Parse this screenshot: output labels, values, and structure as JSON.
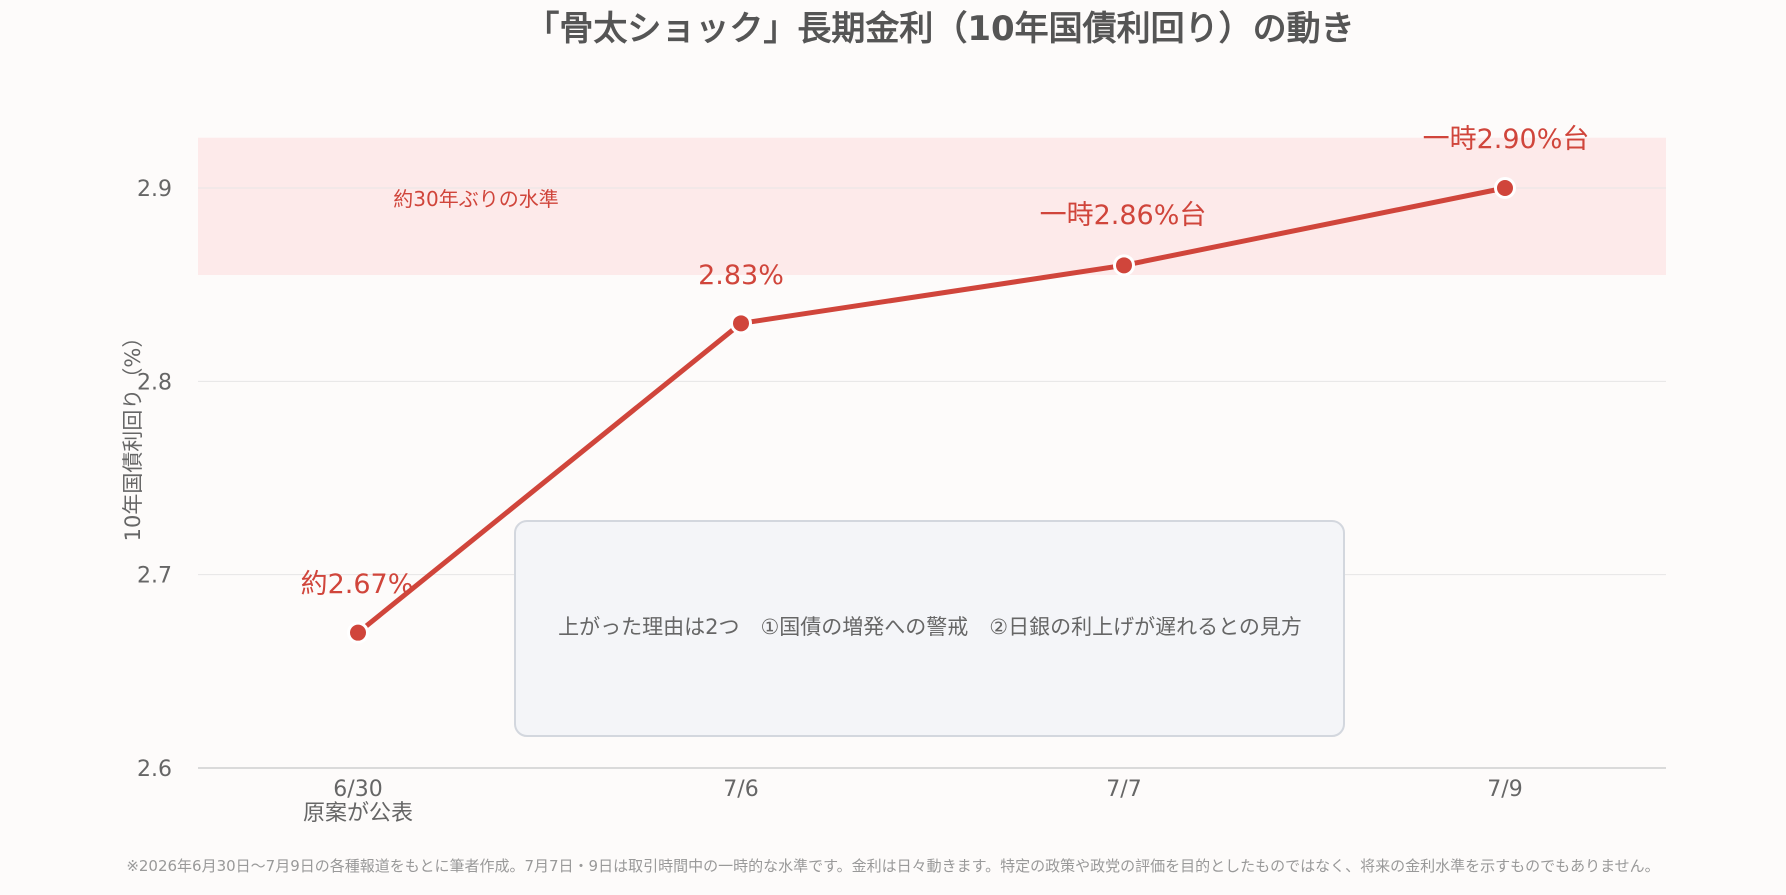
{
  "colors": {
    "line": "#d0453b",
    "band": "#fdeaea",
    "grid": "#e6e6e6",
    "axis": "#cfcfcf",
    "note_bg": "#f4f5f8",
    "note_border": "#d3d7de"
  },
  "chart_data": {
    "type": "line",
    "title": "「骨太ショック」長期金利（10年国債利回り）の動き",
    "xlabel": "",
    "ylabel": "10年国債利回り（%）",
    "ylim": [
      2.6,
      2.92
    ],
    "yticks": [
      2.6,
      2.7,
      2.8,
      2.9
    ],
    "ytick_labels": [
      "2.6",
      "2.7",
      "2.8",
      "2.9"
    ],
    "grid": true,
    "categories": [
      "6/30",
      "7/6",
      "7/7",
      "7/9"
    ],
    "category_sublabels": [
      "原案が公表",
      "",
      "",
      ""
    ],
    "series": [
      {
        "values": [
          2.67,
          2.83,
          2.86,
          2.9
        ],
        "data_labels": [
          "約2.67%",
          "2.83%",
          "一時2.86%台",
          "一時2.90%台"
        ]
      }
    ],
    "band": {
      "from": 2.855,
      "to": 2.926,
      "label": "約30年ぶりの水準"
    },
    "note": "上がった理由は2つ　①国債の増発への警戒　②日銀の利上げが遅れるとの見方"
  },
  "footnote": "※2026年6月30日〜7月9日の各種報道をもとに筆者作成。7月7日・9日は取引時間中の一時的な水準です。金利は日々動きます。特定の政策や政党の評価を目的としたものではなく、将来の金利水準を示すものでもありません。"
}
